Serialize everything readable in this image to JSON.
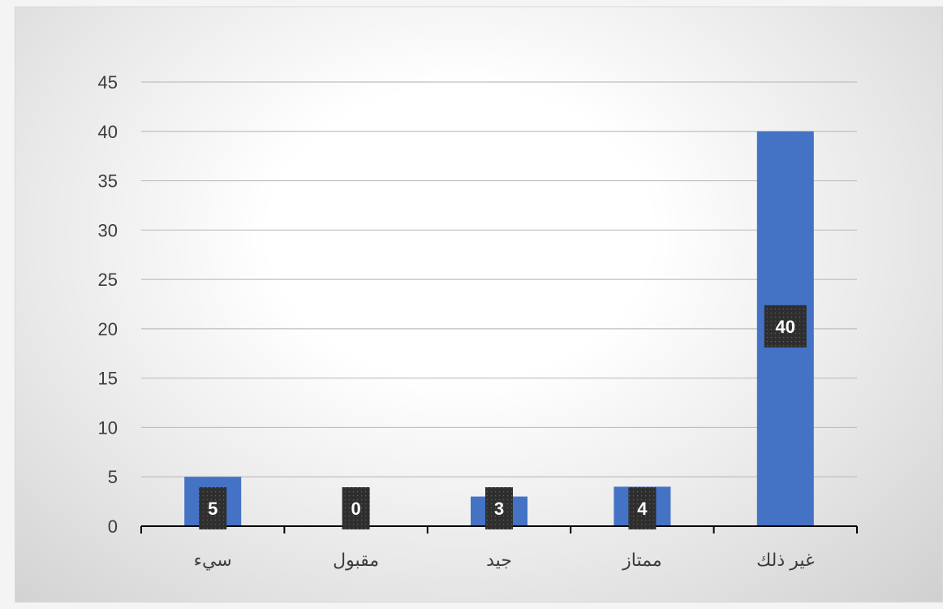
{
  "chart_data": {
    "type": "bar",
    "categories": [
      "سيء",
      "مقبول",
      "جيد",
      "ممتاز",
      "غير ذلك"
    ],
    "values": [
      5,
      0,
      3,
      4,
      40
    ],
    "ylim": [
      0,
      45
    ],
    "yticks": [
      0,
      5,
      10,
      15,
      20,
      25,
      30,
      35,
      40,
      45
    ],
    "grid": true,
    "legend": "none",
    "bar_color": "#4472c4",
    "data_label_color": "#333333",
    "data_label_position": "bar-center"
  }
}
